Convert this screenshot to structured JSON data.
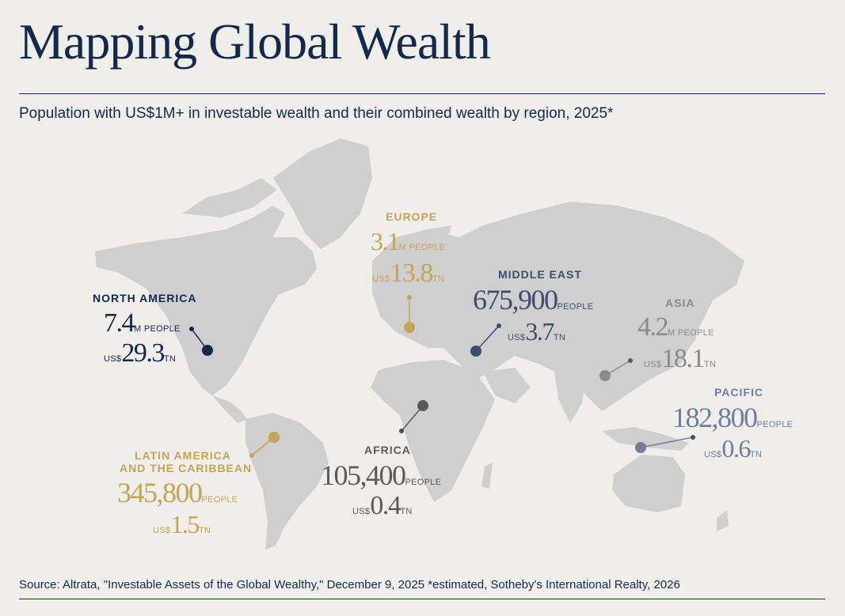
{
  "title": "Mapping Global Wealth",
  "subtitle": "Population with US$1M+ in investable wealth and their combined wealth by region, 2025*",
  "source": "Source: Altrata, \"Investable Assets of the Global Wealthy,\" December 9, 2025  *estimated, Sotheby's International Realty, 2026",
  "colors": {
    "navy": "#13294b",
    "gold": "#c7a356",
    "land": "#cfcfcf",
    "background": "#efeeeb"
  },
  "regions": {
    "north_america": {
      "name": "NORTH AMERICA",
      "people_value": "7.4",
      "people_unit": "M PEOPLE",
      "wealth_prefix": "US$",
      "wealth_value": "29.3",
      "wealth_unit": "TN"
    },
    "europe": {
      "name": "EUROPE",
      "people_value": "3.1",
      "people_unit": "M PEOPLE",
      "wealth_prefix": "US$",
      "wealth_value": "13.8",
      "wealth_unit": "TN"
    },
    "middle_east": {
      "name": "MIDDLE EAST",
      "people_value": "675,900",
      "people_unit": "PEOPLE",
      "wealth_prefix": "US$",
      "wealth_value": "3.7",
      "wealth_unit": "TN"
    },
    "asia": {
      "name": "ASIA",
      "people_value": "4.2",
      "people_unit": "M PEOPLE",
      "wealth_prefix": "US$",
      "wealth_value": "18.1",
      "wealth_unit": "TN"
    },
    "pacific": {
      "name": "PACIFIC",
      "people_value": "182,800",
      "people_unit": "PEOPLE",
      "wealth_prefix": "US$",
      "wealth_value": "0.6",
      "wealth_unit": "TN"
    },
    "africa": {
      "name": "AFRICA",
      "people_value": "105,400",
      "people_unit": "PEOPLE",
      "wealth_prefix": "US$",
      "wealth_value": "0.4",
      "wealth_unit": "TN"
    },
    "latin_america": {
      "name_line1": "LATIN AMERICA",
      "name_line2": "AND THE CARIBBEAN",
      "people_value": "345,800",
      "people_unit": "PEOPLE",
      "wealth_prefix": "US$",
      "wealth_value": "1.5",
      "wealth_unit": "TN"
    }
  }
}
